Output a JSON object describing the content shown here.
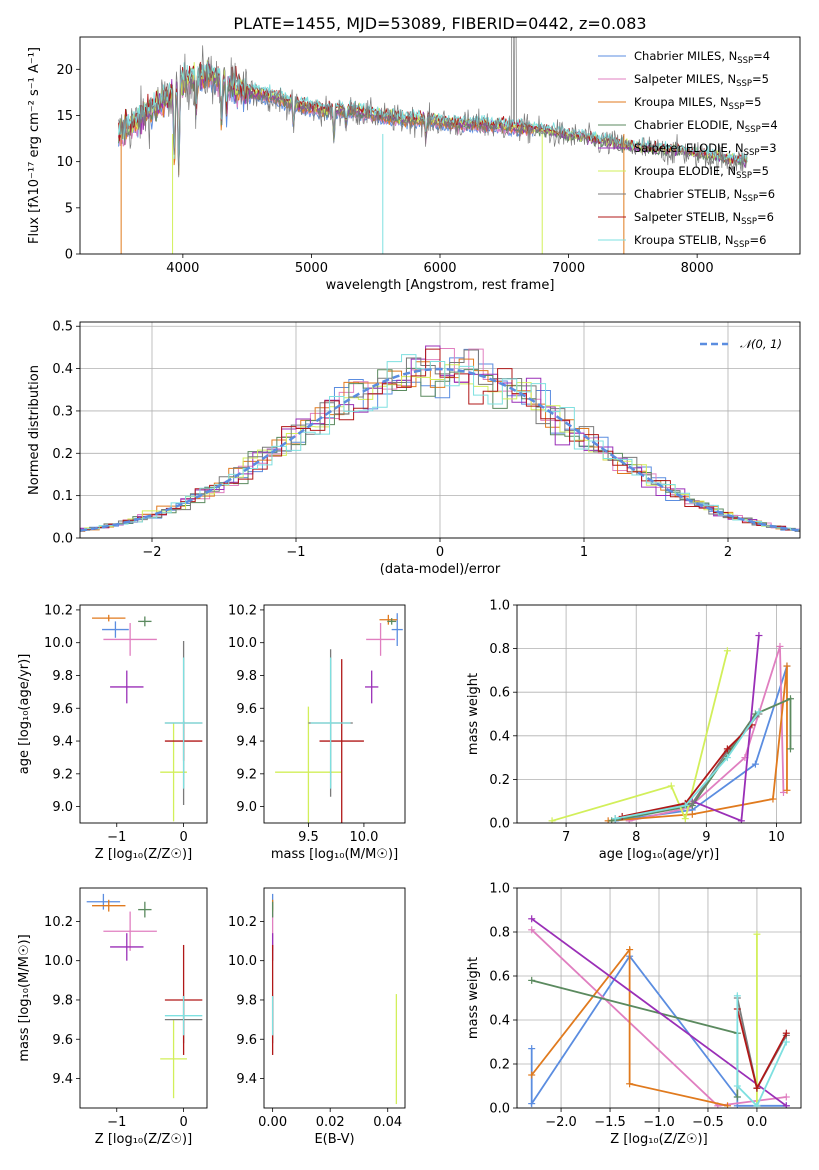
{
  "title": "PLATE=1455, MJD=53089, FIBERID=0442, z=0.083",
  "chart_data": [
    {
      "id": "spectrum",
      "type": "line",
      "xlabel": "wavelength [Angstrom, rest frame]",
      "ylabel": "Flux [fλ10⁻¹⁷ erg cm⁻² s⁻¹ A⁻¹]",
      "xlim": [
        3200,
        8800
      ],
      "ylim": [
        0,
        23.5
      ],
      "xticks": [
        4000,
        5000,
        6000,
        7000,
        8000
      ],
      "yticks": [
        0,
        5,
        10,
        15,
        20
      ],
      "grid": false,
      "legend_position": "upper-right",
      "series": [
        {
          "name": "Chabrier MILES, N_SSP=4",
          "color": "#5b8de0"
        },
        {
          "name": "Salpeter MILES, N_SSP=5",
          "color": "#e07fc0"
        },
        {
          "name": "Kroupa MILES, N_SSP=5",
          "color": "#e07a1e"
        },
        {
          "name": "Chabrier ELODIE, N_SSP=4",
          "color": "#5b8a5f"
        },
        {
          "name": "Salpeter ELODIE, N_SSP=3",
          "color": "#9a2fb7"
        },
        {
          "name": "Kroupa ELODIE, N_SSP=5",
          "color": "#d2ef5a"
        },
        {
          "name": "Chabrier STELIB, N_SSP=6",
          "color": "#7a7a7a"
        },
        {
          "name": "Salpeter STELIB, N_SSP=6",
          "color": "#b01818"
        },
        {
          "name": "Kroupa STELIB, N_SSP=6",
          "color": "#7ee0e0"
        }
      ],
      "continuum": {
        "x": [
          3500,
          3600,
          3700,
          3800,
          3900,
          4000,
          4100,
          4200,
          4300,
          4500,
          4700,
          4900,
          5100,
          5300,
          5500,
          5700,
          5900,
          6100,
          6300,
          6500,
          6700,
          6900,
          7100,
          7300,
          7500,
          7700,
          7900,
          8100,
          8300
        ],
        "y": [
          13,
          14,
          15,
          16,
          17,
          18.5,
          19,
          19.5,
          18.5,
          17.5,
          17,
          16,
          15.5,
          15.5,
          15,
          14.5,
          14.5,
          14,
          14,
          13.8,
          13.5,
          13,
          12.5,
          12,
          11.5,
          11.2,
          11,
          10.5,
          10
        ]
      }
    },
    {
      "id": "residuals",
      "type": "line",
      "xlabel": "(data-model)/error",
      "ylabel": "Normed distribution",
      "xlim": [
        -2.5,
        2.5
      ],
      "ylim": [
        0,
        0.51
      ],
      "xticks": [
        -2,
        -1,
        0,
        1,
        2
      ],
      "yticks": [
        0.0,
        0.1,
        0.2,
        0.3,
        0.4,
        0.5
      ],
      "grid": true,
      "legend": "𝒩(0, 1)",
      "reference_curve": {
        "type": "normal",
        "mean": 0,
        "sigma": 1,
        "color": "#5b8de0"
      }
    },
    {
      "id": "age-vs-Z",
      "type": "scatter",
      "xlabel": "Z [log₁₀(Z/Z☉)]",
      "ylabel": "age  [log₁₀(age/yr)]",
      "xlim": [
        -1.55,
        0.35
      ],
      "ylim": [
        8.9,
        10.23
      ],
      "xticks": [
        -1,
        0
      ],
      "yticks": [
        9.0,
        9.2,
        9.4,
        9.6,
        9.8,
        10.0,
        10.2
      ],
      "points": [
        {
          "x": -1.02,
          "y": 10.08,
          "xerr": 0.2,
          "yerr": 0.05,
          "color": "#5b8de0"
        },
        {
          "x": -0.8,
          "y": 10.02,
          "xerr": 0.4,
          "yerr": 0.1,
          "color": "#e07fc0"
        },
        {
          "x": -1.12,
          "y": 10.15,
          "xerr": 0.25,
          "yerr": 0.02,
          "color": "#e07a1e"
        },
        {
          "x": -0.58,
          "y": 10.13,
          "xerr": 0.1,
          "yerr": 0.03,
          "color": "#5b8a5f"
        },
        {
          "x": -0.85,
          "y": 9.73,
          "xerr": 0.25,
          "yerr": 0.1,
          "color": "#9a2fb7"
        },
        {
          "x": -0.15,
          "y": 9.21,
          "xerr": 0.2,
          "yerr": 0.3,
          "color": "#d2ef5a"
        },
        {
          "x": 0.0,
          "y": 9.51,
          "xerr": 0.28,
          "yerr": 0.5,
          "color": "#7a7a7a"
        },
        {
          "x": 0.0,
          "y": 9.4,
          "xerr": 0.28,
          "yerr": 0.12,
          "color": "#b01818"
        },
        {
          "x": 0.0,
          "y": 9.51,
          "xerr": 0.28,
          "yerr": 0.4,
          "color": "#7ee0e0"
        }
      ]
    },
    {
      "id": "age-vs-mass",
      "type": "scatter",
      "xlabel": "mass [log₁₀(M/M☉)]",
      "ylabel": "",
      "xlim": [
        9.1,
        10.37
      ],
      "ylim": [
        8.9,
        10.23
      ],
      "xticks": [
        9.5,
        10.0
      ],
      "yticks": [
        9.0,
        9.2,
        9.4,
        9.6,
        9.8,
        10.0,
        10.2
      ],
      "points": [
        {
          "x": 10.3,
          "y": 10.08,
          "xerr": 0.05,
          "yerr": 0.1,
          "color": "#5b8de0"
        },
        {
          "x": 10.15,
          "y": 10.02,
          "xerr": 0.13,
          "yerr": 0.1,
          "color": "#e07fc0"
        },
        {
          "x": 10.22,
          "y": 10.14,
          "xerr": 0.08,
          "yerr": 0.03,
          "color": "#e07a1e"
        },
        {
          "x": 10.25,
          "y": 10.13,
          "xerr": 0.04,
          "yerr": 0.02,
          "color": "#5b8a5f"
        },
        {
          "x": 10.07,
          "y": 9.73,
          "xerr": 0.06,
          "yerr": 0.1,
          "color": "#9a2fb7"
        },
        {
          "x": 9.5,
          "y": 9.21,
          "xerr": 0.3,
          "yerr": 0.4,
          "color": "#d2ef5a"
        },
        {
          "x": 9.7,
          "y": 9.51,
          "xerr": 0.2,
          "yerr": 0.45,
          "color": "#7a7a7a"
        },
        {
          "x": 9.8,
          "y": 9.4,
          "xerr": 0.2,
          "yerr": 0.5,
          "color": "#b01818"
        },
        {
          "x": 9.7,
          "y": 9.51,
          "xerr": 0.18,
          "yerr": 0.4,
          "color": "#7ee0e0"
        }
      ]
    },
    {
      "id": "massweight-vs-age",
      "type": "line",
      "xlabel": "age  [log₁₀(age/yr)]",
      "ylabel": "mass weight",
      "xlim": [
        6.3,
        10.35
      ],
      "ylim": [
        0,
        1.0
      ],
      "xticks": [
        7,
        8,
        9,
        10
      ],
      "yticks": [
        0.0,
        0.2,
        0.4,
        0.6,
        0.8,
        1.0
      ],
      "grid": true,
      "series": [
        {
          "color": "#5b8de0",
          "x": [
            7.7,
            8.8,
            9.7,
            10.15
          ],
          "y": [
            0.01,
            0.06,
            0.27,
            0.72
          ]
        },
        {
          "color": "#e07fc0",
          "x": [
            7.9,
            8.75,
            9.55,
            10.05,
            10.1
          ],
          "y": [
            0.01,
            0.07,
            0.3,
            0.81,
            0.14
          ]
        },
        {
          "color": "#e07a1e",
          "x": [
            7.6,
            8.8,
            9.95,
            10.15,
            10.15
          ],
          "y": [
            0.01,
            0.04,
            0.11,
            0.72,
            0.15
          ]
        },
        {
          "color": "#5b8a5f",
          "x": [
            7.65,
            8.8,
            9.7,
            10.2,
            10.2
          ],
          "y": [
            0.01,
            0.08,
            0.5,
            0.57,
            0.34
          ]
        },
        {
          "color": "#9a2fb7",
          "x": [
            8.8,
            9.5,
            9.75
          ],
          "y": [
            0.1,
            0.01,
            0.86
          ]
        },
        {
          "color": "#d2ef5a",
          "x": [
            6.8,
            8.5,
            8.7,
            9.3
          ],
          "y": [
            0.01,
            0.17,
            0.02,
            0.79
          ]
        },
        {
          "color": "#7a7a7a",
          "x": [
            7.7,
            8.8,
            9.3,
            9.75
          ],
          "y": [
            0.02,
            0.09,
            0.33,
            0.5
          ]
        },
        {
          "color": "#b01818",
          "x": [
            7.8,
            8.7,
            9.3,
            9.65
          ],
          "y": [
            0.03,
            0.09,
            0.34,
            0.45
          ]
        },
        {
          "color": "#7ee0e0",
          "x": [
            7.7,
            8.7,
            9.3,
            9.75
          ],
          "y": [
            0.02,
            0.08,
            0.3,
            0.51
          ]
        }
      ]
    },
    {
      "id": "mass-vs-Z",
      "type": "scatter",
      "xlabel": "Z [log₁₀(Z/Z☉)]",
      "ylabel": "mass [log₁₀(M/M☉)]",
      "xlim": [
        -1.55,
        0.35
      ],
      "ylim": [
        9.25,
        10.37
      ],
      "xticks": [
        -1,
        0
      ],
      "yticks": [
        9.4,
        9.6,
        9.8,
        10.0,
        10.2
      ],
      "points": [
        {
          "x": -1.2,
          "y": 10.3,
          "xerr": 0.25,
          "yerr": 0.04,
          "color": "#5b8de0"
        },
        {
          "x": -0.8,
          "y": 10.15,
          "xerr": 0.4,
          "yerr": 0.1,
          "color": "#e07fc0"
        },
        {
          "x": -1.12,
          "y": 10.28,
          "xerr": 0.25,
          "yerr": 0.03,
          "color": "#e07a1e"
        },
        {
          "x": -0.58,
          "y": 10.26,
          "xerr": 0.1,
          "yerr": 0.04,
          "color": "#5b8a5f"
        },
        {
          "x": -0.85,
          "y": 10.07,
          "xerr": 0.25,
          "yerr": 0.07,
          "color": "#9a2fb7"
        },
        {
          "x": -0.15,
          "y": 9.5,
          "xerr": 0.2,
          "yerr": 0.2,
          "color": "#d2ef5a"
        },
        {
          "x": 0.0,
          "y": 9.7,
          "xerr": 0.28,
          "yerr": 0.12,
          "color": "#7a7a7a"
        },
        {
          "x": 0.0,
          "y": 9.8,
          "xerr": 0.28,
          "yerr": 0.28,
          "color": "#b01818"
        },
        {
          "x": 0.0,
          "y": 9.72,
          "xerr": 0.28,
          "yerr": 0.1,
          "color": "#7ee0e0"
        }
      ]
    },
    {
      "id": "mass-vs-EBV",
      "type": "scatter",
      "xlabel": "E(B-V)",
      "ylabel": "",
      "xlim": [
        -0.003,
        0.046
      ],
      "ylim": [
        9.25,
        10.37
      ],
      "xticks": [
        0.0,
        0.02,
        0.04
      ],
      "xticklabels": [
        "0.00",
        "0.02",
        "0.04"
      ],
      "yticks": [
        9.4,
        9.6,
        9.8,
        10.0,
        10.2
      ],
      "points": [
        {
          "x": 0.0,
          "y": 10.3,
          "xerr": 0,
          "yerr": 0.04,
          "color": "#5b8de0"
        },
        {
          "x": 0.0,
          "y": 10.15,
          "xerr": 0,
          "yerr": 0.1,
          "color": "#e07fc0"
        },
        {
          "x": 0.0,
          "y": 10.28,
          "xerr": 0,
          "yerr": 0.03,
          "color": "#e07a1e"
        },
        {
          "x": 0.0,
          "y": 10.26,
          "xerr": 0,
          "yerr": 0.04,
          "color": "#5b8a5f"
        },
        {
          "x": 0.0,
          "y": 10.07,
          "xerr": 0,
          "yerr": 0.07,
          "color": "#9a2fb7"
        },
        {
          "x": 0.0,
          "y": 9.7,
          "xerr": 0,
          "yerr": 0.12,
          "color": "#7a7a7a"
        },
        {
          "x": 0.0,
          "y": 9.8,
          "xerr": 0,
          "yerr": 0.28,
          "color": "#b01818"
        },
        {
          "x": 0.0,
          "y": 9.72,
          "xerr": 0,
          "yerr": 0.1,
          "color": "#7ee0e0"
        },
        {
          "x": 0.043,
          "y": 9.55,
          "xerr": 0,
          "yerr": 0.28,
          "color": "#d2ef5a"
        }
      ]
    },
    {
      "id": "massweight-vs-Z",
      "type": "line",
      "xlabel": "Z [log₁₀(Z/Z☉)]",
      "ylabel": "mass weight",
      "xlim": [
        -2.45,
        0.45
      ],
      "ylim": [
        0,
        1.0
      ],
      "xticks": [
        -2.0,
        -1.5,
        -1.0,
        -0.5,
        0.0
      ],
      "xticklabels": [
        "−2.0",
        "−1.5",
        "−1.0",
        "−0.5",
        "0.0"
      ],
      "yticks": [
        0.0,
        0.2,
        0.4,
        0.6,
        0.8,
        1.0
      ],
      "grid": true,
      "series": [
        {
          "color": "#5b8de0",
          "x": [
            -2.3,
            -2.3,
            -1.3,
            -0.2,
            -0.2,
            0.3
          ],
          "y": [
            0.27,
            0.02,
            0.69,
            0.05,
            0.01,
            0.01
          ]
        },
        {
          "color": "#e07fc0",
          "x": [
            -2.3,
            -0.4,
            0.3
          ],
          "y": [
            0.81,
            0.01,
            0.05
          ]
        },
        {
          "color": "#e07a1e",
          "x": [
            -2.3,
            -1.3,
            -1.3,
            -0.3
          ],
          "y": [
            0.15,
            0.72,
            0.11,
            0.01
          ]
        },
        {
          "color": "#5b8a5f",
          "x": [
            -2.3,
            -0.2,
            -0.2
          ],
          "y": [
            0.58,
            0.34,
            0.05
          ]
        },
        {
          "color": "#9a2fb7",
          "x": [
            -2.3,
            0.3
          ],
          "y": [
            0.86,
            0.01
          ]
        },
        {
          "color": "#d2ef5a",
          "x": [
            0.0,
            0.0
          ],
          "y": [
            0.79,
            0.01
          ]
        },
        {
          "color": "#7a7a7a",
          "x": [
            -0.2,
            0.0,
            0.3
          ],
          "y": [
            0.5,
            0.09,
            0.33
          ]
        },
        {
          "color": "#b01818",
          "x": [
            -0.2,
            0.0,
            0.3
          ],
          "y": [
            0.45,
            0.09,
            0.34
          ]
        },
        {
          "color": "#7ee0e0",
          "x": [
            -0.2,
            -0.2,
            0.0,
            0.3
          ],
          "y": [
            0.51,
            0.1,
            0.01,
            0.3
          ]
        }
      ]
    }
  ]
}
